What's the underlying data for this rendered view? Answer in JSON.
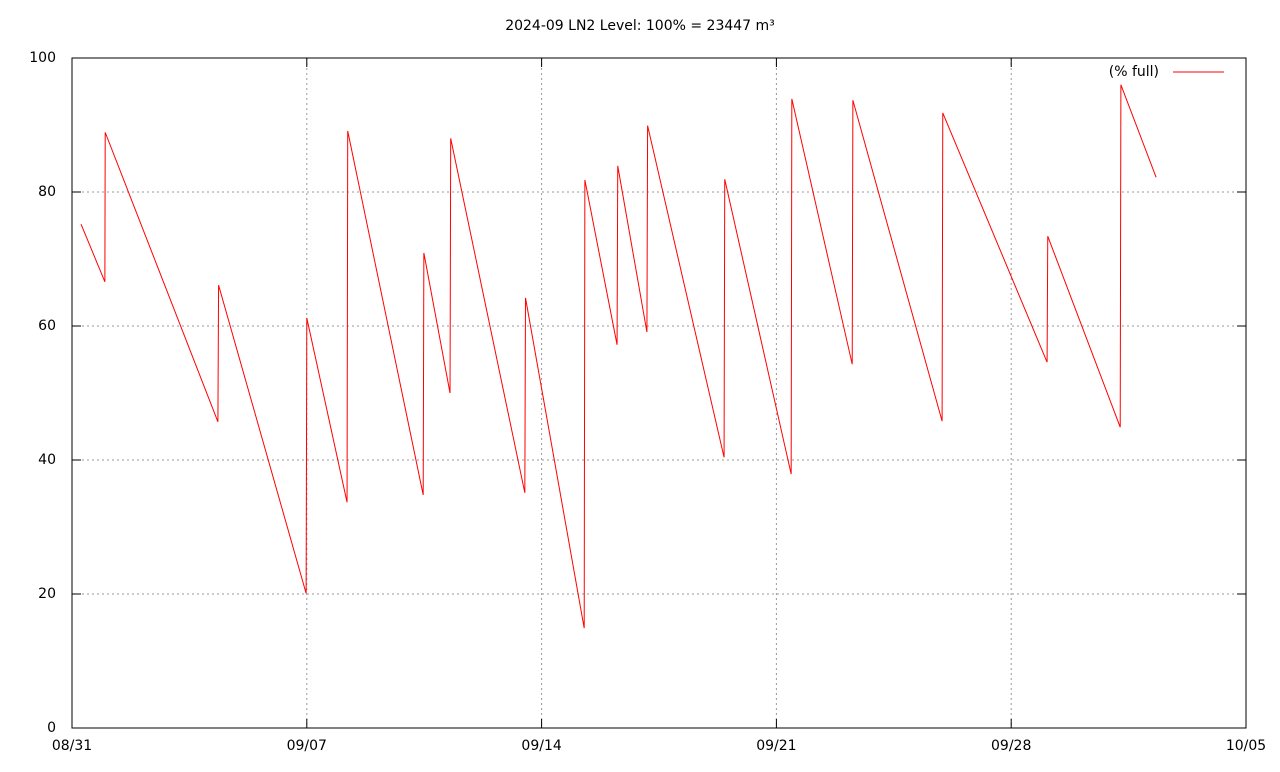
{
  "chart_data": {
    "type": "line",
    "title": "2024-09 LN2 Level: 100% = 23447 m³",
    "x": [
      0.27,
      0.98,
      0.99,
      4.35,
      4.37,
      6.98,
      7.0,
      8.2,
      8.22,
      10.47,
      10.49,
      11.27,
      11.29,
      13.5,
      13.52,
      15.27,
      15.29,
      16.25,
      16.27,
      17.14,
      17.16,
      19.44,
      19.46,
      21.44,
      21.46,
      23.26,
      23.28,
      25.94,
      25.96,
      29.07,
      29.09,
      31.25,
      31.27,
      32.32
    ],
    "series": [
      {
        "name": "(% full)",
        "color": "#ff0000",
        "values": [
          75.2,
          66.6,
          88.9,
          45.7,
          66.1,
          20.1,
          61.2,
          33.7,
          89.1,
          34.8,
          70.9,
          50,
          88,
          35.1,
          64.2,
          14.9,
          81.8,
          57.2,
          83.9,
          59.1,
          89.9,
          40.4,
          81.9,
          37.9,
          93.9,
          54.3,
          93.7,
          45.8,
          91.8,
          54.6,
          73.4,
          44.9,
          96,
          82.2
        ]
      }
    ],
    "xlim": [
      0,
      35
    ],
    "xticks": [
      {
        "value": 0,
        "label": "08/31"
      },
      {
        "value": 7,
        "label": "09/07"
      },
      {
        "value": 14,
        "label": "09/14"
      },
      {
        "value": 21,
        "label": "09/21"
      },
      {
        "value": 28,
        "label": "09/28"
      },
      {
        "value": 35,
        "label": "10/05"
      }
    ],
    "ylim": [
      0,
      100
    ],
    "yticks": [
      0,
      20,
      40,
      60,
      80,
      100
    ],
    "grid": true,
    "legend": "top-right"
  }
}
